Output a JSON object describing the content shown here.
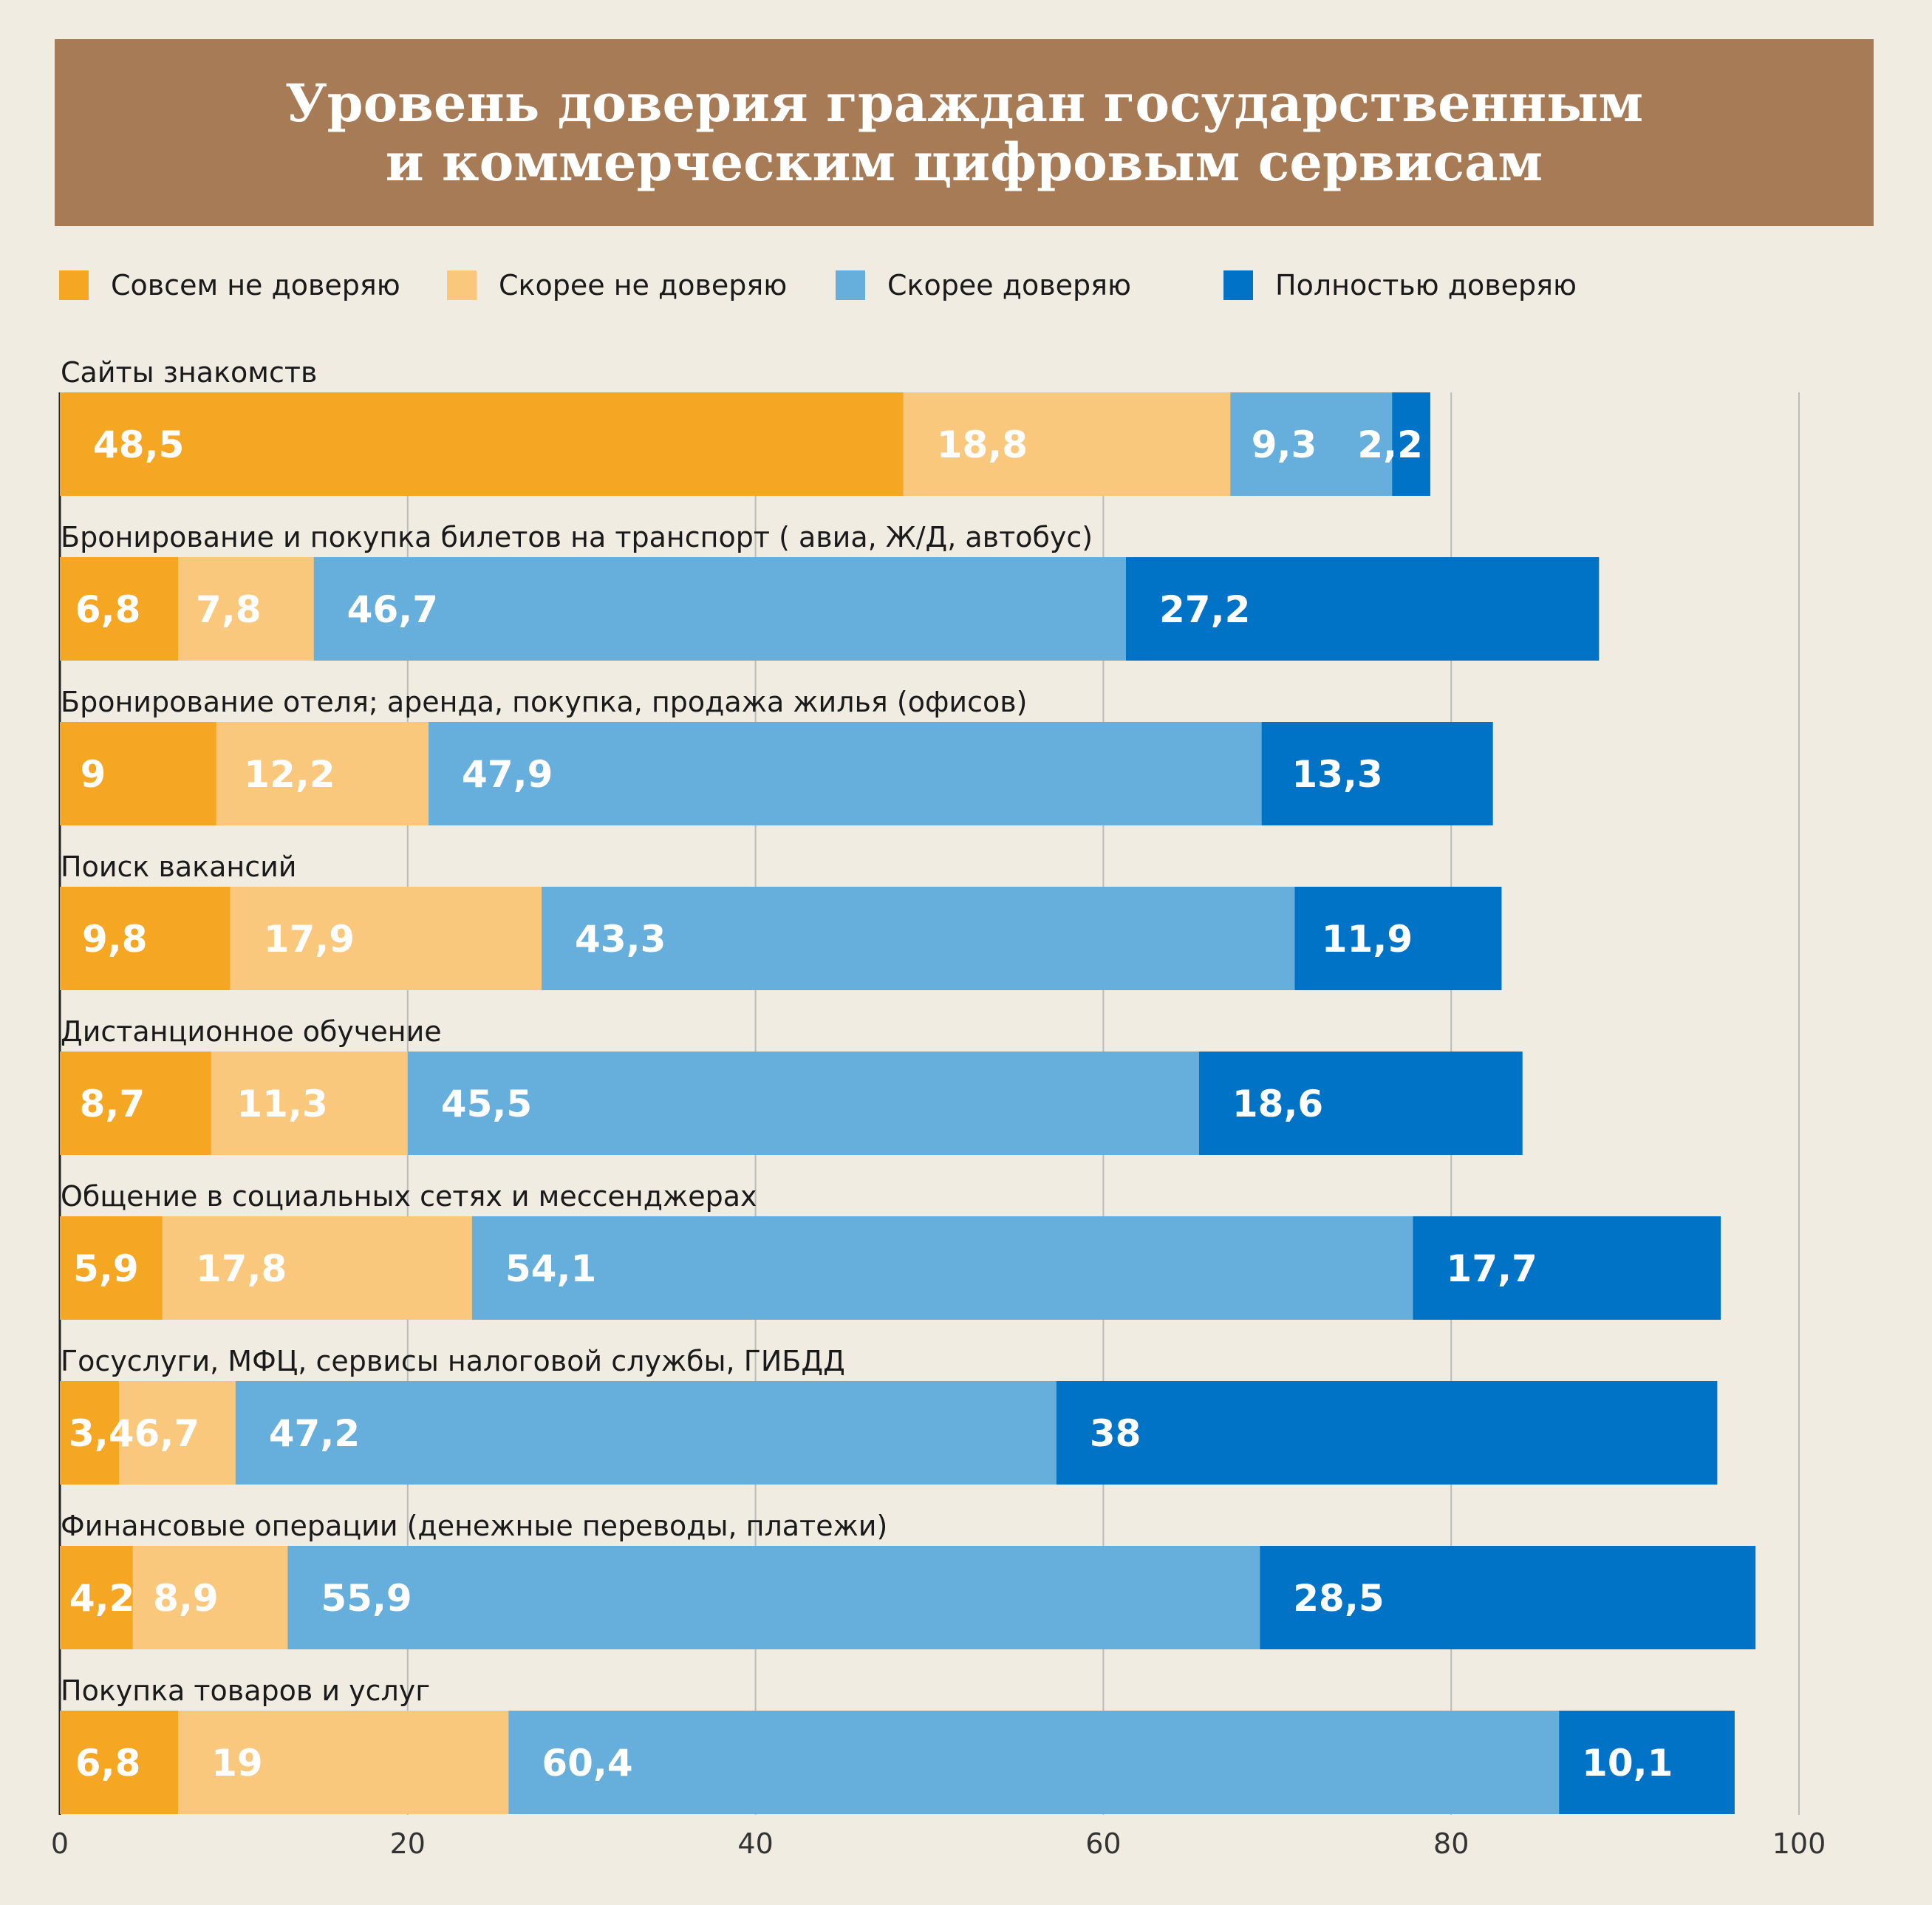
{
  "title": {
    "line1": "Уровень доверия граждан государственным",
    "line2": "и коммерческим цифровым сервисам"
  },
  "legend": [
    {
      "label": "Совсем не доверяю",
      "color": "#f5a623"
    },
    {
      "label": "Скорее не доверяю",
      "color": "#f9c87c"
    },
    {
      "label": "Скорее доверяю",
      "color": "#66aedc"
    },
    {
      "label": "Полностью доверяю",
      "color": "#0073c6"
    }
  ],
  "chart_data": {
    "type": "bar",
    "orientation": "horizontal",
    "stacked": true,
    "categories": [
      "Сайты знакомств",
      "Бронирование и покупка билетов на транспорт ( авиа, Ж/Д, автобус)",
      "Бронирование отеля; аренда, покупка, продажа жилья (офисов)",
      "Поиск вакансий",
      "Дистанционное обучение",
      "Общение в социальных сетях и мессенджерах",
      "Госуслуги, МФЦ, сервисы налоговой службы, ГИБДД",
      "Финансовые операции (денежные переводы, платежи)",
      "Покупка товаров и услуг"
    ],
    "series": [
      {
        "name": "Совсем не доверяю",
        "color": "#f5a623",
        "values": [
          48.5,
          6.8,
          9,
          9.8,
          8.7,
          5.9,
          3.4,
          4.2,
          6.8
        ],
        "labels": [
          "48,5",
          "6,8",
          "9",
          "9,8",
          "8,7",
          "5,9",
          "3,4",
          "4,2",
          "6,8"
        ]
      },
      {
        "name": "Скорее не доверяю",
        "color": "#f9c87c",
        "values": [
          18.8,
          7.8,
          12.2,
          17.9,
          11.3,
          17.8,
          6.7,
          8.9,
          19
        ],
        "labels": [
          "18,8",
          "7,8",
          "12,2",
          "17,9",
          "11,3",
          "17,8",
          "6,7",
          "8,9",
          "19"
        ]
      },
      {
        "name": "Скорее доверяю",
        "color": "#66aedc",
        "values": [
          9.3,
          46.7,
          47.9,
          43.3,
          45.5,
          54.1,
          47.2,
          55.9,
          60.4
        ],
        "labels": [
          "9,3",
          "46,7",
          "47,9",
          "43,3",
          "45,5",
          "54,1",
          "47,2",
          "55,9",
          "60,4"
        ]
      },
      {
        "name": "Полностью доверяю",
        "color": "#0073c6",
        "values": [
          2.2,
          27.2,
          13.3,
          11.9,
          18.6,
          17.7,
          38,
          28.5,
          10.1
        ],
        "labels": [
          "2,2",
          "27,2",
          "13,3",
          "11,9",
          "18,6",
          "17,7",
          "38",
          "28,5",
          "10,1"
        ]
      }
    ],
    "xlim": [
      0,
      100
    ],
    "xticks": [
      "0",
      "20",
      "40",
      "60",
      "80",
      "100"
    ],
    "grid": true,
    "title": "Уровень доверия граждан государственным и коммерческим цифровым сервисам"
  }
}
